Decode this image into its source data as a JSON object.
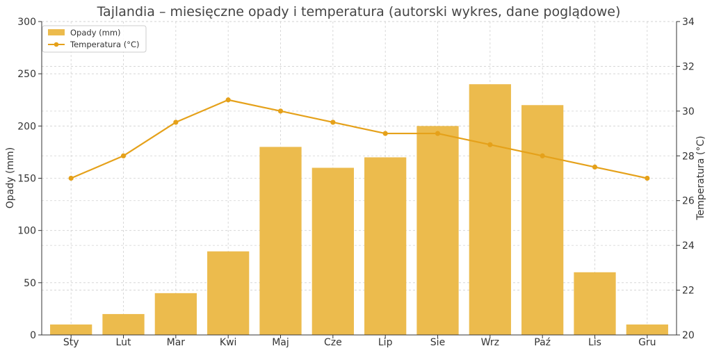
{
  "chart_data": {
    "type": "bar+line",
    "title": "Tajlandia – miesięczne opady i temperatura (autorski wykres, dane poglądowe)",
    "categories": [
      "Sty",
      "Lut",
      "Mar",
      "Kwi",
      "Maj",
      "Cze",
      "Lip",
      "Sie",
      "Wrz",
      "Paź",
      "Lis",
      "Gru"
    ],
    "series": [
      {
        "name": "Opady (mm)",
        "kind": "bar",
        "axis": "left",
        "values": [
          10,
          20,
          40,
          80,
          180,
          160,
          170,
          200,
          240,
          220,
          60,
          10
        ]
      },
      {
        "name": "Temperatura (°C)",
        "kind": "line",
        "axis": "right",
        "values": [
          27,
          28,
          29.5,
          30.5,
          30,
          29.5,
          29,
          29,
          28.5,
          28,
          27.5,
          27
        ]
      }
    ],
    "ylabel": "Opady (mm)",
    "y2label": "Temperatura (°C)",
    "ylim": [
      0,
      300
    ],
    "y2lim": [
      20,
      34
    ],
    "yticks": [
      "0",
      "50",
      "100",
      "150",
      "200",
      "250",
      "300"
    ],
    "y2ticks": [
      "20",
      "22",
      "24",
      "26",
      "28",
      "30",
      "32",
      "34"
    ],
    "grid": true,
    "legend_position": "top-left",
    "colors": {
      "bar": "#ecbb4d",
      "line": "#e5a11a",
      "grid": "#d0d0d0"
    }
  }
}
